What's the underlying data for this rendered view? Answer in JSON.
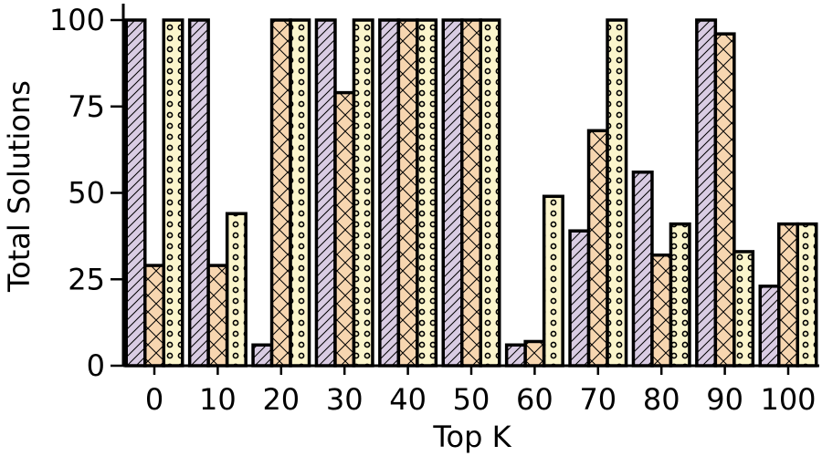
{
  "chart_data": {
    "type": "bar",
    "title": "",
    "xlabel": "Top K",
    "ylabel": "Total Solutions",
    "categories": [
      "0",
      "10",
      "20",
      "30",
      "40",
      "50",
      "60",
      "70",
      "80",
      "90",
      "100"
    ],
    "ylim": [
      0,
      100
    ],
    "yticks": [
      "0",
      "25",
      "50",
      "75",
      "100"
    ],
    "grid": false,
    "series": [
      {
        "color": "#d9cce3",
        "hatch": "diagonal",
        "values": [
          100,
          100,
          6,
          100,
          100,
          100,
          6,
          39,
          56,
          100,
          23
        ]
      },
      {
        "color": "#f7d6b0",
        "hatch": "crosshatch",
        "values": [
          29,
          29,
          100,
          79,
          100,
          100,
          7,
          68,
          32,
          96,
          41
        ]
      },
      {
        "color": "#fbf5cc",
        "hatch": "circles",
        "values": [
          100,
          44,
          100,
          100,
          100,
          100,
          49,
          100,
          41,
          33,
          41
        ]
      }
    ]
  }
}
